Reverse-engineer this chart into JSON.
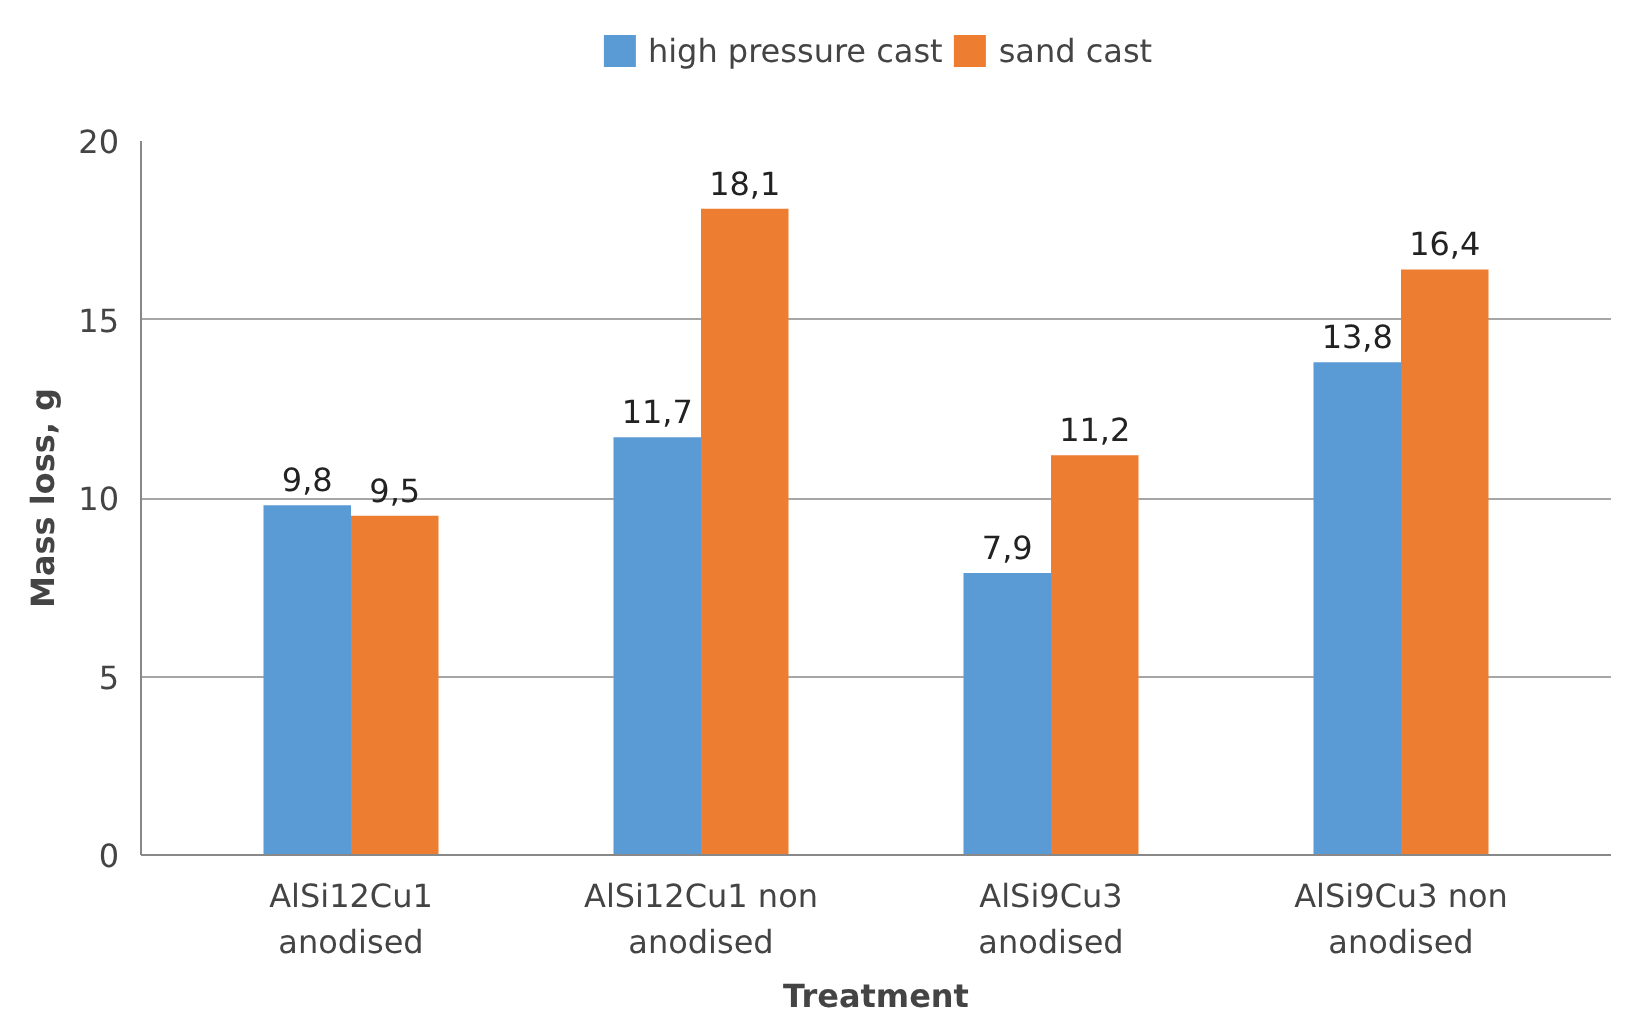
{
  "chart_data": {
    "type": "bar",
    "xlabel": "Treatment",
    "ylabel": "Mass loss, g",
    "categories": [
      "AlSi12Cu1 anodised",
      "AlSi12Cu1 non anodised",
      "AlSi9Cu3 anodised",
      "AlSi9Cu3 non anodised"
    ],
    "series": [
      {
        "name": "high pressure cast",
        "color": "#5b9bd5",
        "values": [
          9.8,
          11.7,
          7.9,
          13.8
        ],
        "value_labels": [
          "9,8",
          "11,7",
          "7,9",
          "13,8"
        ]
      },
      {
        "name": "sand cast",
        "color": "#ed7d31",
        "values": [
          9.5,
          18.1,
          11.2,
          16.4
        ],
        "value_labels": [
          "9,5",
          "18,1",
          "11,2",
          "16,4"
        ]
      }
    ],
    "ylim": [
      0,
      20
    ],
    "yticks": [
      0,
      5,
      10,
      15,
      20
    ],
    "grid": "y",
    "legend": "top"
  }
}
